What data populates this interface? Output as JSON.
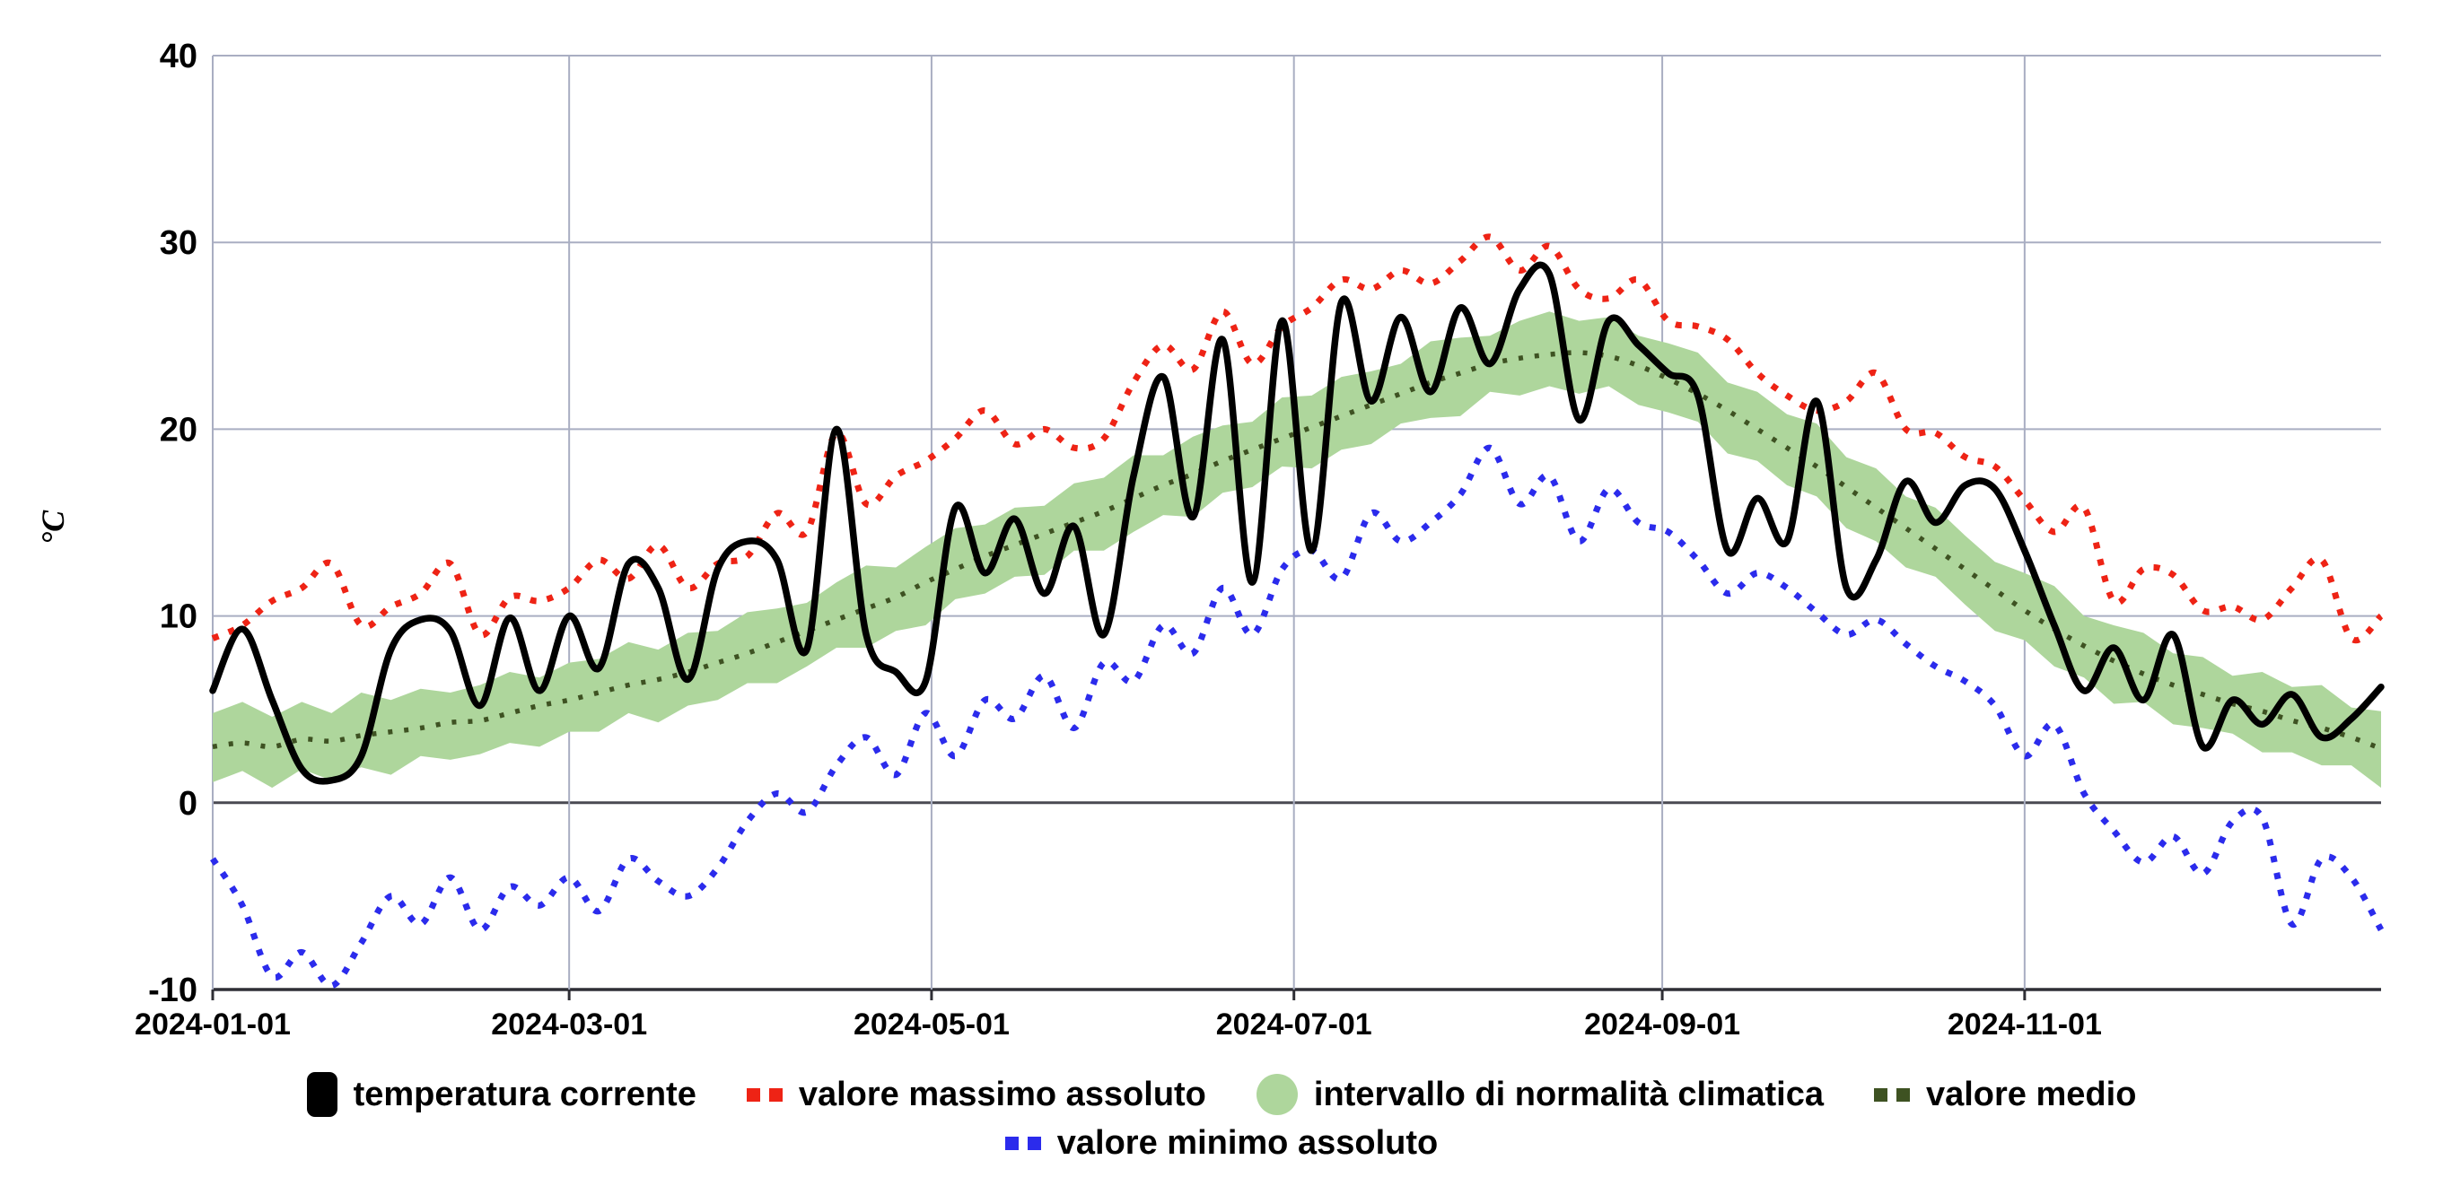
{
  "axis": {
    "y_label": "°C"
  },
  "legend": {
    "row1": [
      {
        "id": "temperatura-corrente",
        "label": "temperatura corrente",
        "swatch": "bar",
        "color": "#000000"
      },
      {
        "id": "valore-massimo-assoluto",
        "label": "valore massimo assoluto",
        "swatch": "dash",
        "color": "#ee2315"
      },
      {
        "id": "intervallo-di-normalita-climatica",
        "label": "intervallo di normalità climatica",
        "swatch": "circle",
        "color": "#aed69c"
      },
      {
        "id": "valore-medio",
        "label": "valore medio",
        "swatch": "dash",
        "color": "#3e5222"
      }
    ],
    "row2": [
      {
        "id": "valore-minimo-assoluto",
        "label": "valore minimo assoluto",
        "swatch": "dash",
        "color": "#2b2bec"
      }
    ]
  },
  "chart_data": {
    "type": "line",
    "title": "",
    "xlabel": "",
    "ylabel": "°C",
    "ylim": [
      -10,
      40
    ],
    "grid": true,
    "legend_position": "bottom",
    "x_unit": "day_of_year_2024",
    "y_ticks": [
      40,
      30,
      20,
      10,
      0,
      -10
    ],
    "x_ticks": [
      {
        "label": "2024-01-01",
        "day": 1
      },
      {
        "label": "2024-03-01",
        "day": 61
      },
      {
        "label": "2024-05-01",
        "day": 122
      },
      {
        "label": "2024-07-01",
        "day": 183
      },
      {
        "label": "2024-09-01",
        "day": 245
      },
      {
        "label": "2024-11-01",
        "day": 306
      }
    ],
    "days": [
      1,
      6,
      11,
      16,
      21,
      26,
      31,
      36,
      41,
      46,
      51,
      56,
      61,
      66,
      71,
      76,
      81,
      86,
      91,
      96,
      101,
      106,
      111,
      116,
      121,
      126,
      131,
      136,
      141,
      146,
      151,
      156,
      161,
      166,
      171,
      176,
      181,
      186,
      191,
      196,
      201,
      206,
      211,
      216,
      221,
      226,
      231,
      236,
      241,
      246,
      251,
      256,
      261,
      266,
      271,
      276,
      281,
      286,
      291,
      296,
      301,
      306,
      311,
      316,
      321,
      326,
      331,
      336,
      341,
      346,
      351,
      356,
      361,
      366
    ],
    "band": {
      "id": "intervallo-di-normalita-climatica",
      "name": "intervallo di normalità climatica",
      "color": "#aed69c",
      "upper": [
        4.8,
        5.4,
        4.6,
        5.4,
        4.8,
        5.9,
        5.5,
        6.1,
        5.9,
        6.3,
        7.0,
        6.7,
        7.5,
        7.7,
        8.6,
        8.2,
        9.1,
        9.2,
        10.2,
        10.4,
        10.7,
        11.8,
        12.7,
        12.6,
        13.7,
        14.7,
        14.9,
        15.8,
        15.9,
        17.1,
        17.4,
        18.6,
        18.6,
        19.6,
        20.2,
        20.4,
        21.7,
        21.8,
        22.8,
        23.1,
        23.5,
        24.7,
        24.9,
        25.0,
        25.8,
        26.3,
        25.8,
        26.0,
        25.0,
        24.6,
        24.1,
        22.5,
        22.0,
        20.8,
        20.3,
        18.5,
        17.9,
        16.4,
        15.8,
        14.3,
        12.9,
        12.3,
        11.6,
        10.0,
        9.5,
        9.1,
        8.0,
        7.8,
        6.8,
        7.0,
        6.2,
        6.3,
        5.1,
        4.9
      ],
      "lower": [
        1.1,
        1.7,
        0.8,
        1.8,
        1.2,
        1.9,
        1.5,
        2.5,
        2.3,
        2.6,
        3.2,
        3.0,
        3.8,
        3.8,
        4.8,
        4.3,
        5.2,
        5.5,
        6.4,
        6.4,
        7.3,
        8.3,
        8.3,
        9.2,
        9.5,
        10.9,
        11.2,
        12.1,
        12.2,
        13.5,
        13.5,
        14.5,
        15.4,
        15.3,
        16.6,
        16.9,
        18.0,
        17.9,
        18.9,
        19.2,
        20.3,
        20.6,
        20.7,
        22.0,
        21.8,
        22.3,
        21.9,
        22.3,
        21.3,
        20.9,
        20.4,
        18.7,
        18.3,
        17.0,
        16.4,
        14.7,
        14.0,
        12.6,
        12.1,
        10.6,
        9.2,
        8.7,
        7.3,
        6.7,
        5.3,
        5.4,
        4.2,
        4.0,
        3.7,
        2.7,
        2.7,
        2.0,
        2.0,
        0.8
      ]
    },
    "series": [
      {
        "id": "valore-medio",
        "name": "valore medio",
        "color": "#3e5222",
        "style": "dotted-small",
        "values": [
          3.0,
          3.2,
          3.0,
          3.4,
          3.3,
          3.6,
          3.8,
          4.0,
          4.3,
          4.4,
          4.8,
          5.2,
          5.5,
          5.9,
          6.3,
          6.6,
          7.0,
          7.5,
          8.0,
          8.6,
          9.2,
          9.8,
          10.4,
          11.0,
          11.8,
          12.5,
          13.2,
          13.8,
          14.4,
          15.0,
          15.6,
          16.3,
          17.0,
          17.6,
          18.3,
          18.9,
          19.5,
          20.1,
          20.7,
          21.3,
          21.9,
          22.5,
          23.0,
          23.5,
          23.8,
          24.0,
          24.1,
          23.9,
          23.4,
          22.7,
          21.9,
          21.0,
          20.0,
          19.0,
          18.0,
          16.9,
          15.8,
          14.7,
          13.6,
          12.5,
          11.4,
          10.3,
          9.3,
          8.4,
          7.6,
          6.9,
          6.3,
          5.8,
          5.3,
          4.9,
          4.4,
          4.0,
          3.5,
          2.9
        ]
      },
      {
        "id": "valore-massimo-assoluto",
        "name": "valore massimo assoluto",
        "color": "#ee2315",
        "style": "dotted",
        "values": [
          8.8,
          9.5,
          10.8,
          11.5,
          12.8,
          9.5,
          10.5,
          11.2,
          12.8,
          9.0,
          11.0,
          10.8,
          11.5,
          13.0,
          12.0,
          13.8,
          11.5,
          12.8,
          13.2,
          15.5,
          14.5,
          19.8,
          16.0,
          17.5,
          18.3,
          19.5,
          21.0,
          19.2,
          20.0,
          19.0,
          19.5,
          22.5,
          24.5,
          23.2,
          26.3,
          23.5,
          25.5,
          26.5,
          28.0,
          27.5,
          28.5,
          27.8,
          29.0,
          30.3,
          28.5,
          29.8,
          27.5,
          27.0,
          28.0,
          25.8,
          25.5,
          24.8,
          23.0,
          21.8,
          21.0,
          21.5,
          23.0,
          20.0,
          19.8,
          18.5,
          18.0,
          16.2,
          14.5,
          15.8,
          10.8,
          12.5,
          12.2,
          10.3,
          10.5,
          9.8,
          11.5,
          13.0,
          8.8,
          10.0
        ]
      },
      {
        "id": "valore-minimo-assoluto",
        "name": "valore minimo assoluto",
        "color": "#2b2bec",
        "style": "dotted",
        "values": [
          -3.0,
          -5.5,
          -9.3,
          -8.0,
          -9.8,
          -7.5,
          -5.0,
          -6.5,
          -4.0,
          -6.8,
          -4.5,
          -5.5,
          -4.0,
          -5.8,
          -3.0,
          -4.2,
          -5.0,
          -3.5,
          -1.0,
          0.5,
          -0.5,
          2.0,
          3.5,
          1.5,
          4.8,
          2.5,
          5.5,
          4.5,
          6.8,
          4.0,
          7.5,
          6.5,
          9.5,
          8.0,
          11.5,
          9.0,
          12.5,
          13.5,
          12.0,
          15.5,
          14.0,
          15.0,
          16.5,
          19.0,
          16.0,
          17.5,
          14.0,
          16.8,
          15.0,
          14.5,
          13.0,
          11.2,
          12.3,
          11.5,
          10.2,
          9.0,
          9.8,
          8.5,
          7.3,
          6.5,
          5.2,
          2.5,
          4.2,
          0.5,
          -1.5,
          -3.2,
          -1.8,
          -3.8,
          -1.0,
          -0.8,
          -6.5,
          -3.0,
          -4.0,
          -6.8
        ]
      },
      {
        "id": "temperatura-corrente",
        "name": "temperatura corrente",
        "color": "#000000",
        "style": "solid",
        "values": [
          6.0,
          9.3,
          5.5,
          1.8,
          1.2,
          2.5,
          8.2,
          9.8,
          9.2,
          5.2,
          9.9,
          6.0,
          10.0,
          7.2,
          12.8,
          11.5,
          6.6,
          12.5,
          14.0,
          13.0,
          8.2,
          20.0,
          9.0,
          7.0,
          6.5,
          15.8,
          12.3,
          15.2,
          11.2,
          14.8,
          9.0,
          17.5,
          22.8,
          15.3,
          24.8,
          11.8,
          25.8,
          13.5,
          26.8,
          21.5,
          26.0,
          22.0,
          26.5,
          23.5,
          27.5,
          28.3,
          20.5,
          25.8,
          24.5,
          23.0,
          21.8,
          13.5,
          16.3,
          14.0,
          21.5,
          11.5,
          13.0,
          17.2,
          15.0,
          17.0,
          16.8,
          13.5,
          9.5,
          6.0,
          8.3,
          5.5,
          9.0,
          3.0,
          5.5,
          4.2,
          5.8,
          3.5,
          4.5,
          6.2
        ]
      }
    ],
    "plot_colors": {
      "gridline": "#a9aec2",
      "zero_line": "#4a4a52",
      "bottom_axis": "#2f2f36",
      "background": "#ffffff"
    }
  }
}
